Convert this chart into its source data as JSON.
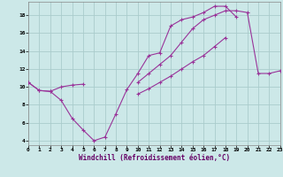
{
  "background_color": "#cce8e8",
  "grid_color": "#aacccc",
  "line_color": "#993399",
  "xlim": [
    0,
    23
  ],
  "ylim": [
    3.5,
    19.5
  ],
  "xticks": [
    0,
    1,
    2,
    3,
    4,
    5,
    6,
    7,
    8,
    9,
    10,
    11,
    12,
    13,
    14,
    15,
    16,
    17,
    18,
    19,
    20,
    21,
    22,
    23
  ],
  "yticks": [
    4,
    6,
    8,
    10,
    12,
    14,
    16,
    18
  ],
  "xlabel": "Windchill (Refroidissement éolien,°C)",
  "hours": [
    0,
    1,
    2,
    3,
    4,
    5,
    6,
    7,
    8,
    9,
    10,
    11,
    12,
    13,
    14,
    15,
    16,
    17,
    18,
    19,
    20,
    21,
    22,
    23
  ],
  "line1": [
    10.5,
    9.6,
    9.5,
    8.5,
    6.5,
    5.2,
    4.0,
    4.4,
    7.0,
    9.7,
    11.5,
    13.5,
    13.8,
    16.8,
    17.5,
    17.8,
    18.3,
    19.0,
    19.0,
    17.8,
    null,
    null,
    null,
    null
  ],
  "line2": [
    10.5,
    9.6,
    9.5,
    10.0,
    10.2,
    10.3,
    null,
    null,
    null,
    null,
    10.5,
    11.5,
    12.5,
    13.5,
    15.0,
    16.5,
    17.5,
    18.0,
    18.5,
    18.5,
    18.3,
    11.5,
    11.5,
    11.8
  ],
  "line3": [
    null,
    null,
    null,
    null,
    null,
    null,
    null,
    null,
    null,
    null,
    9.2,
    9.8,
    10.5,
    11.2,
    12.0,
    12.8,
    13.5,
    14.5,
    15.5,
    null,
    null,
    null,
    null,
    null
  ]
}
